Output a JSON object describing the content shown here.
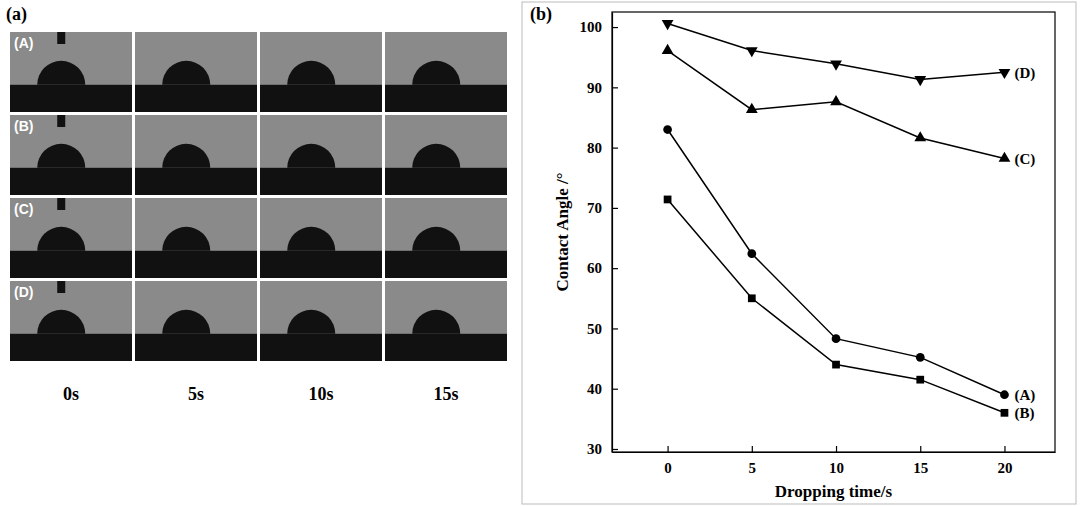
{
  "image_panel": {
    "label": "(a)",
    "row_labels": [
      "(A)",
      "(B)",
      "(C)",
      "(D)"
    ],
    "column_labels": [
      "0s",
      "5s",
      "10s",
      "15s"
    ]
  },
  "chart_panel_label": "(b)",
  "chart_data": {
    "type": "line",
    "x_label": "Dropping time/s",
    "y_label": "Contact Angle /°",
    "x": [
      0,
      5,
      10,
      15,
      20
    ],
    "xlim": [
      -3.3,
      23
    ],
    "xticks": [
      0,
      5,
      10,
      15,
      20
    ],
    "ylim": [
      29.5,
      102.5
    ],
    "yticks": [
      30,
      40,
      50,
      60,
      70,
      80,
      90,
      100
    ],
    "grid": false,
    "series": [
      {
        "name": "(A)",
        "color": "#000000",
        "marker": "circle",
        "values": [
          83,
          62.4,
          48.3,
          45.2,
          39
        ]
      },
      {
        "name": "(B)",
        "color": "#000000",
        "marker": "square",
        "values": [
          71.4,
          55,
          44,
          41.5,
          36
        ]
      },
      {
        "name": "(C)",
        "color": "#000000",
        "marker": "triangle-up",
        "values": [
          96.1,
          86.3,
          87.6,
          81.6,
          78.2
        ]
      },
      {
        "name": "(D)",
        "color": "#000000",
        "marker": "triangle-down",
        "values": [
          100.6,
          96.1,
          93.9,
          91.3,
          92.5
        ]
      }
    ]
  }
}
